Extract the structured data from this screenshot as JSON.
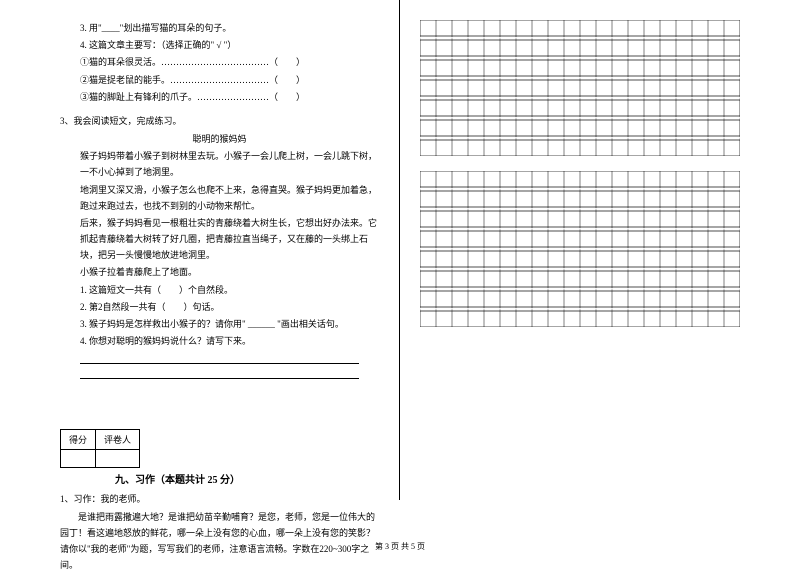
{
  "left": {
    "q3": "3. 用\"____\"划出描写猫的耳朵的句子。",
    "q4": "4. 这篇文章主要写：（选择正确的\" √ \"）",
    "q4a": "①猫的耳朵很灵活。………………………………（　　）",
    "q4b": "②猫是捉老鼠的能手。……………………………（　　）",
    "q4c": "③猫的脚趾上有锋利的爪子。……………………（　　）",
    "passage_intro": "3、我会阅读短文，完成练习。",
    "passage_title": "聪明的猴妈妈",
    "p1": "猴子妈妈带着小猴子到树林里去玩。小猴子一会儿爬上树，一会儿跳下树，一不小心掉到了地洞里。",
    "p2": "地洞里又深又滑，小猴子怎么也爬不上来，急得直哭。猴子妈妈更加着急，跑过来跑过去，也找不到别的小动物来帮忙。",
    "p3": "后来，猴子妈妈看见一根粗壮实的青藤绕着大树生长，它想出好办法来。它抓起青藤绕着大树转了好几圈，把青藤拉直当绳子，又在藤的一头绑上石块，把另一头慢慢地放进地洞里。",
    "p4": "小猴子拉着青藤爬上了地面。",
    "pq1": "1. 这篇短文一共有（　　）个自然段。",
    "pq2": "2. 第2自然段一共有（　　）句话。",
    "pq3": "3. 猴子妈妈是怎样救出小猴子的？请你用\" ______ \"画出相关话句。",
    "pq4": "4. 你想对聪明的猴妈妈说什么？请写下来。",
    "score_label1": "得分",
    "score_label2": "评卷人",
    "section9": "九、习作（本题共计 25 分）",
    "essay_intro": "1、习作：我的老师。",
    "essay_body": "　　是谁把雨露撒遍大地？是谁把幼苗辛勤哺育？是您，老师，您是一位伟大的园丁！看这遍地怒放的鲜花，哪一朵上没有您的心血，哪一朵上没有您的笑影？请你以\"我的老师\"为题，写写我们的老师，注意语言流畅。字数在220~300字之间。"
  },
  "grid": {
    "rows_a": 7,
    "rows_b": 8,
    "cols": 20,
    "cell_size": 16,
    "gap": 4
  },
  "footer": "第 3 页 共 5 页"
}
